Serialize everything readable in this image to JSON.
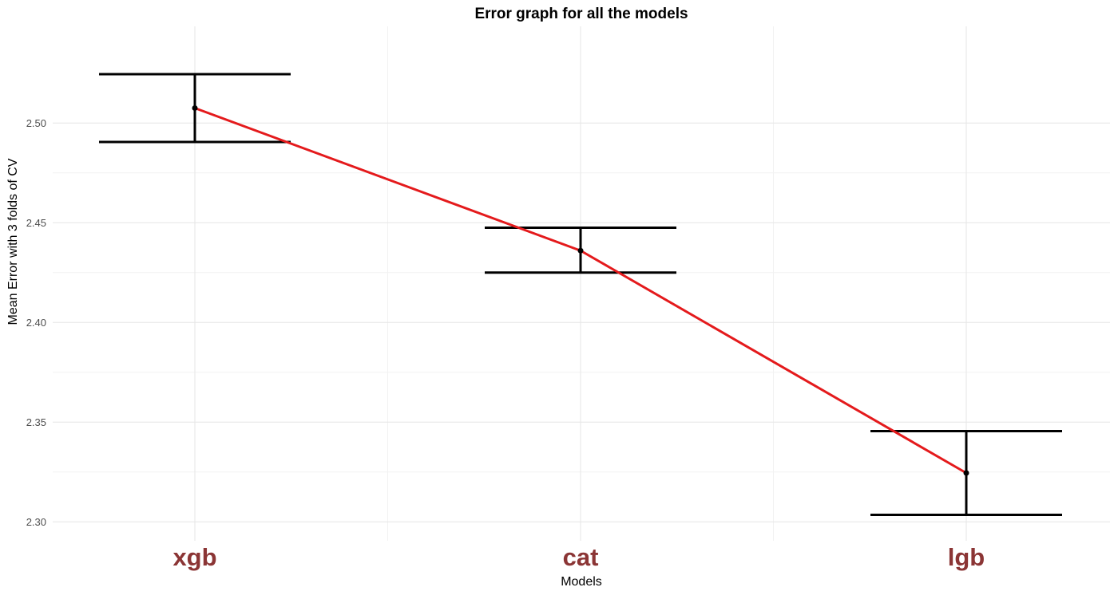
{
  "chart_data": {
    "type": "line",
    "title": "Error graph for all the models",
    "xlabel": "Models",
    "ylabel": "Mean Error with 3 folds of CV",
    "categories": [
      "xgb",
      "cat",
      "lgb"
    ],
    "series": [
      {
        "values": [
          2.5075,
          2.436,
          2.3245
        ],
        "error_lower": [
          2.4905,
          2.425,
          2.3035
        ],
        "error_upper": [
          2.5245,
          2.4475,
          2.3455
        ]
      }
    ],
    "y_ticks": [
      "2.30",
      "2.35",
      "2.40",
      "2.45",
      "2.50"
    ],
    "ylim": [
      2.2905,
      2.5485
    ],
    "grid": true,
    "legend": "none"
  },
  "colors": {
    "line": "#e41a1c",
    "errorbar": "#000000",
    "point": "#000000",
    "x_tick_label": "#8b3535",
    "grid_major": "#e6e6e6",
    "grid_minor": "#f2f2f2"
  }
}
